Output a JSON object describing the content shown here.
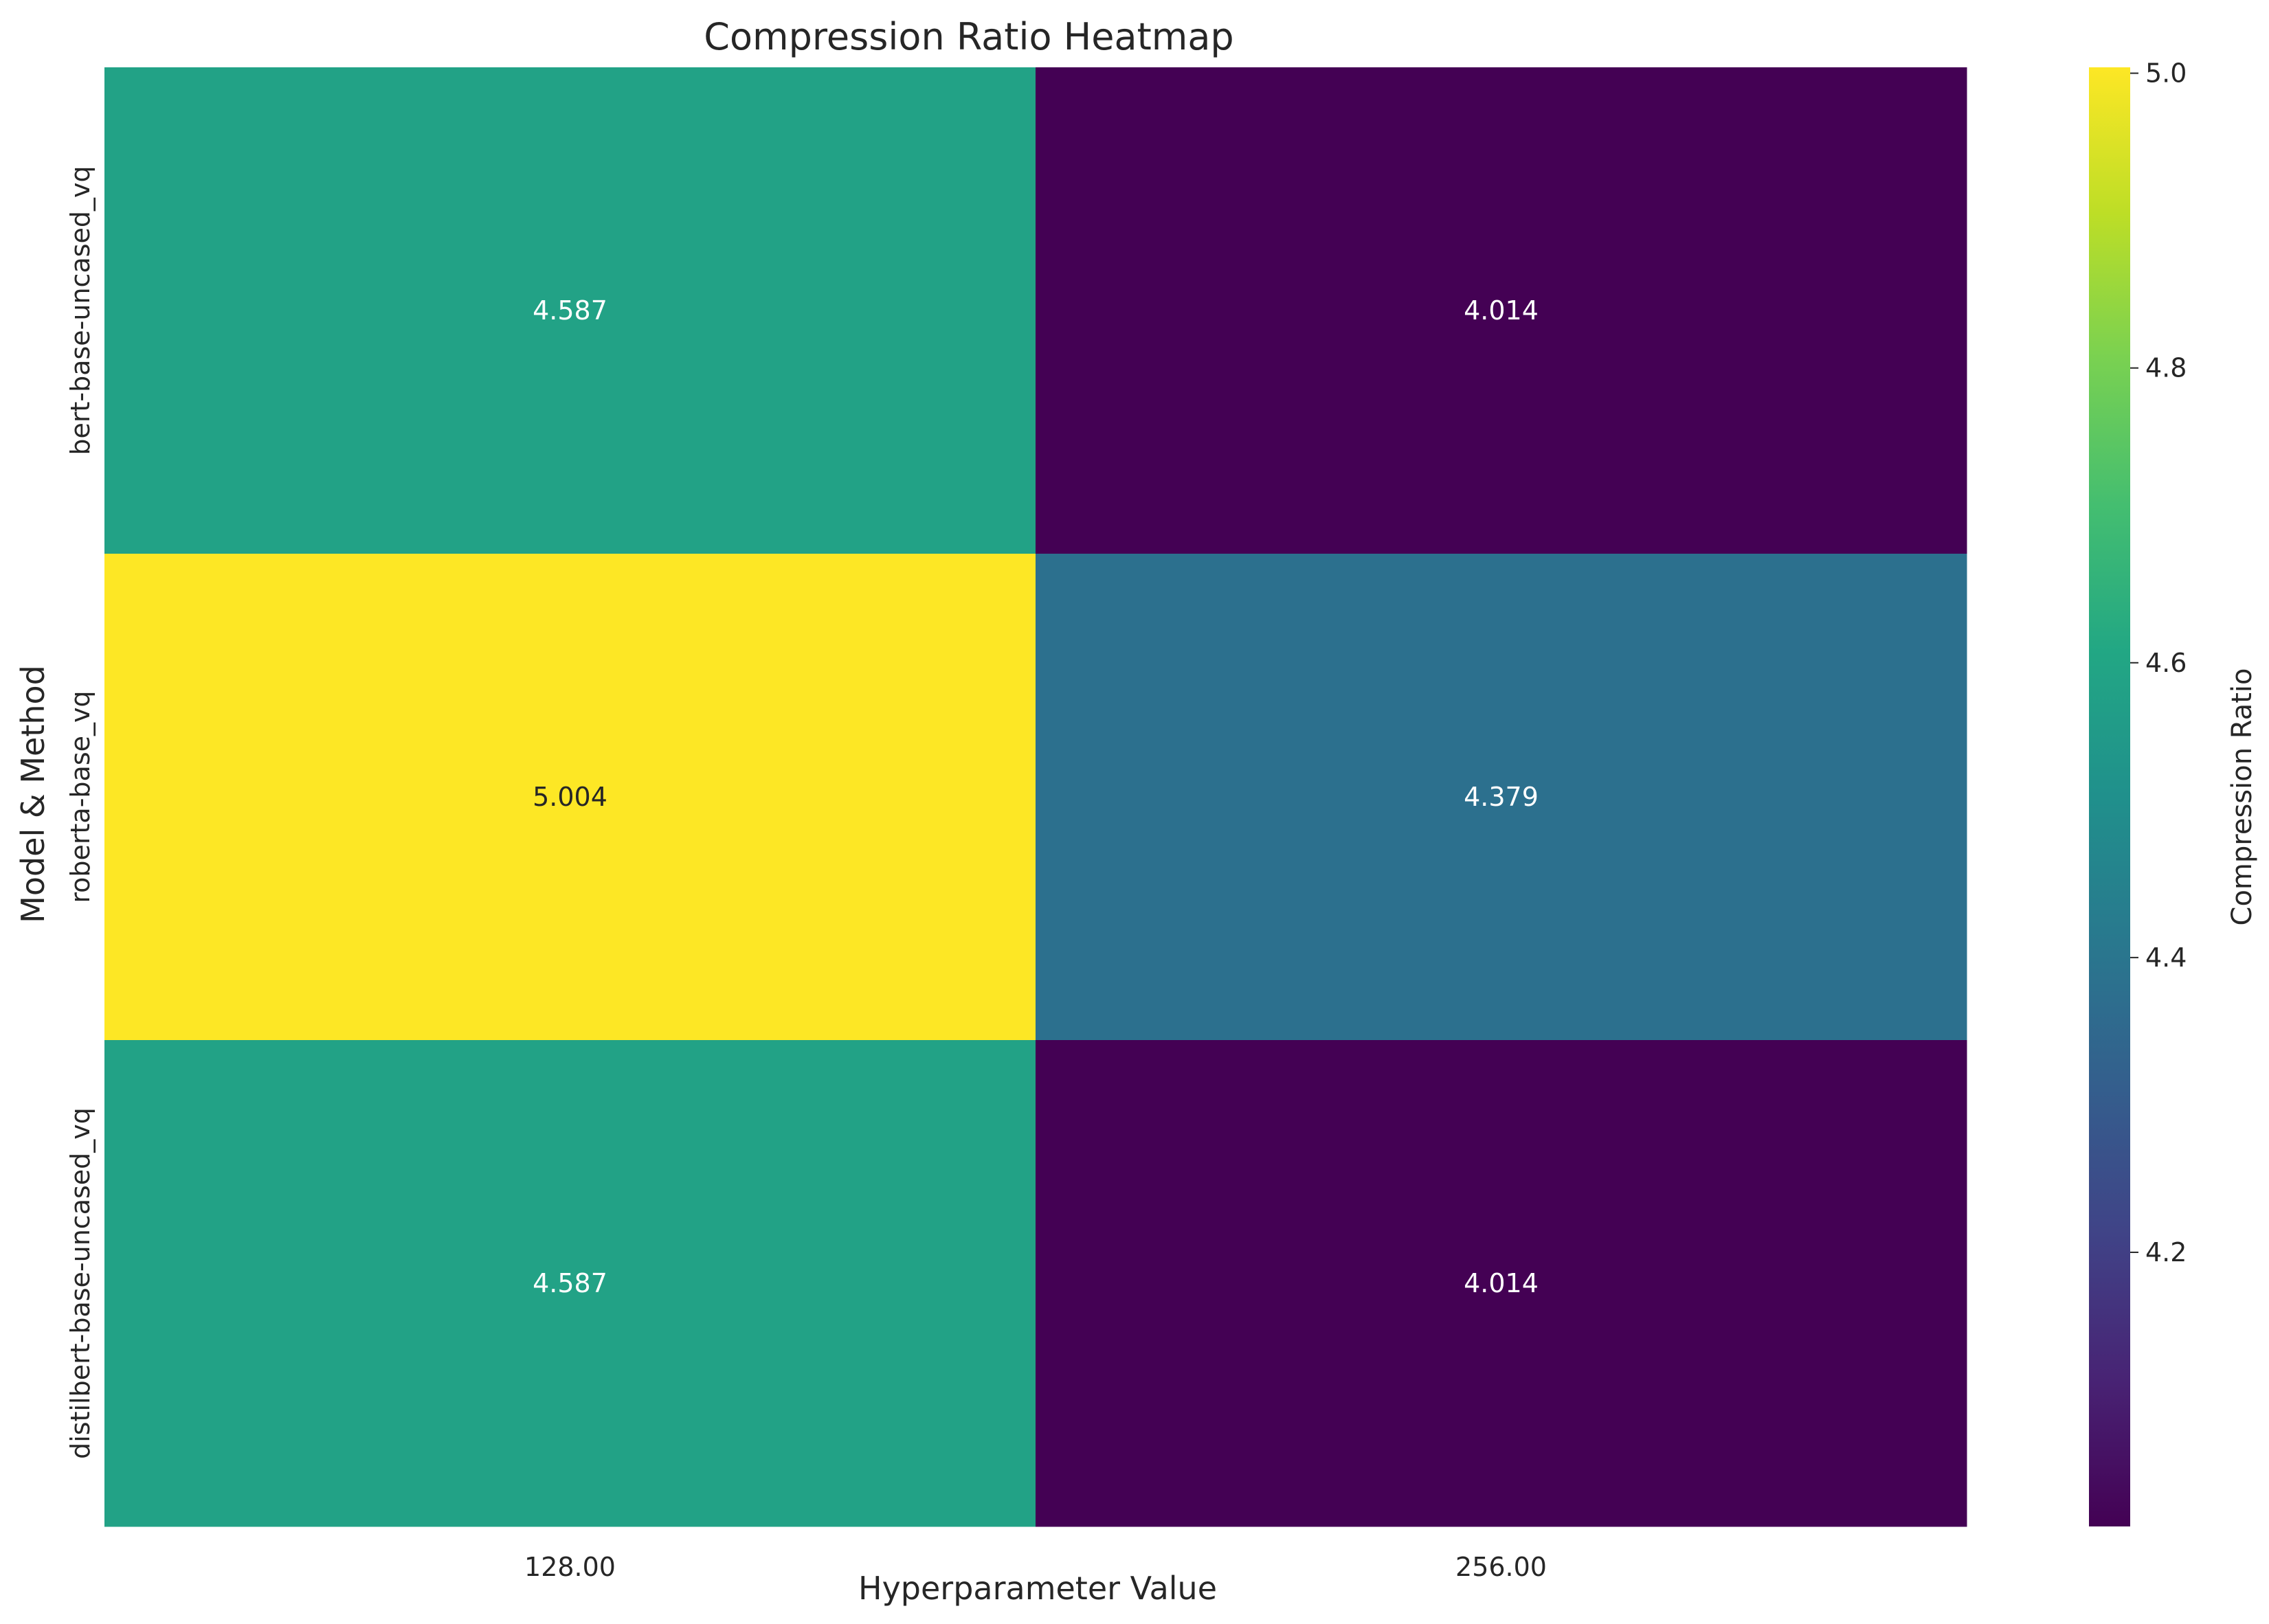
{
  "chart_data": {
    "type": "heatmap",
    "title": "Compression Ratio Heatmap",
    "xlabel": "Hyperparameter Value",
    "ylabel": "Model & Method",
    "x_categories": [
      "128.00",
      "256.00"
    ],
    "y_categories": [
      "bert-base-uncased_vq",
      "roberta-base_vq",
      "distilbert-base-uncased_vq"
    ],
    "values": [
      [
        4.587,
        4.014
      ],
      [
        5.004,
        4.379
      ],
      [
        4.587,
        4.014
      ]
    ],
    "value_labels": [
      [
        "4.587",
        "4.014"
      ],
      [
        "5.004",
        "4.379"
      ],
      [
        "4.587",
        "4.014"
      ]
    ],
    "colormap": "viridis",
    "color_range": [
      4.014,
      5.004
    ],
    "colorbar": {
      "label": "Compression Ratio",
      "ticks": [
        4.2,
        4.4,
        4.6,
        4.8,
        5.0
      ],
      "tick_labels": [
        "4.2",
        "4.4",
        "4.6",
        "4.8",
        "5.0"
      ]
    },
    "grid": false
  }
}
